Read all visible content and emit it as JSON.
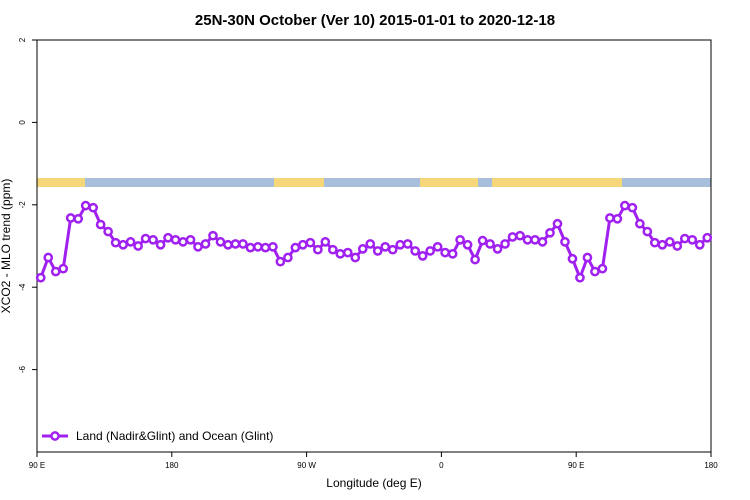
{
  "chart_data": {
    "type": "line",
    "title": "25N-30N October (Ver 10)   2015-01-01 to 2020-12-18",
    "x_label": "Longitude (deg E)",
    "y_label": "XCO2 - MLO trend (ppm)",
    "xlim": [
      90,
      540
    ],
    "ylim": [
      -8,
      2
    ],
    "xticks": [
      {
        "value": 90,
        "label": "90 E"
      },
      180,
      {
        "value": 270,
        "label": "90 W"
      },
      {
        "value": 360,
        "label": "0"
      },
      {
        "value": 450,
        "label": "90 E"
      },
      {
        "value": 540,
        "label": "180"
      }
    ],
    "yticks": [
      -6,
      -4,
      -2,
      0,
      2
    ],
    "legend": "bottom-left",
    "x": [
      92.5,
      97.5,
      102.5,
      107.5,
      112.5,
      117.5,
      122.5,
      127.5,
      132.5,
      137.5,
      142.5,
      147.5,
      152.5,
      157.5,
      162.5,
      167.5,
      172.5,
      177.5,
      182.5,
      187.5,
      192.5,
      197.5,
      202.5,
      207.5,
      212.5,
      217.5,
      222.5,
      227.5,
      232.5,
      237.5,
      242.5,
      247.5,
      252.5,
      257.5,
      262.5,
      267.5,
      272.5,
      277.5,
      282.5,
      287.5,
      292.5,
      297.5,
      302.5,
      307.5,
      312.5,
      317.5,
      322.5,
      327.5,
      332.5,
      337.5,
      342.5,
      347.5,
      352.5,
      357.5,
      362.5,
      367.5,
      372.5,
      377.5,
      382.5,
      387.5,
      392.5,
      397.5,
      402.5,
      407.5,
      412.5,
      417.5,
      422.5,
      427.5,
      432.5,
      437.5,
      442.5,
      447.5,
      452.5,
      457.5,
      462.5,
      467.5,
      472.5,
      477.5,
      482.5,
      487.5,
      492.5,
      497.5,
      502.5,
      507.5,
      512.5,
      517.5,
      522.5,
      527.5,
      532.5,
      537.5
    ],
    "series": [
      {
        "name": "Land (Nadir&Glint) and Ocean (Glint)",
        "color": "#a020f0",
        "values": [
          -3.77,
          -3.28,
          -3.62,
          -3.55,
          -2.32,
          -2.34,
          -2.02,
          -2.07,
          -2.48,
          -2.65,
          -2.92,
          -2.97,
          -2.9,
          -3.0,
          -2.82,
          -2.85,
          -2.97,
          -2.8,
          -2.85,
          -2.9,
          -2.85,
          -3.02,
          -2.95,
          -2.75,
          -2.9,
          -2.97,
          -2.95,
          -2.95,
          -3.04,
          -3.02,
          -3.04,
          -3.02,
          -3.38,
          -3.28,
          -3.04,
          -2.97,
          -2.92,
          -3.09,
          -2.9,
          -3.09,
          -3.19,
          -3.16,
          -3.28,
          -3.07,
          -2.95,
          -3.12,
          -3.02,
          -3.09,
          -2.97,
          -2.95,
          -3.12,
          -3.24,
          -3.12,
          -3.02,
          -3.16,
          -3.19,
          -2.85,
          -2.97,
          -3.33,
          -2.87,
          -2.95,
          -3.07,
          -2.95,
          -2.78,
          -2.75,
          -2.85,
          -2.85,
          -2.9,
          -2.68,
          -2.46,
          -2.9,
          -3.31,
          -3.77,
          -3.28,
          -3.62,
          -3.55,
          -2.32,
          -2.34,
          -2.02,
          -2.07,
          -2.46,
          -2.65,
          -2.92,
          -2.97,
          -2.9,
          -3.0,
          -2.82,
          -2.85,
          -2.97,
          -2.8
        ]
      }
    ]
  }
}
